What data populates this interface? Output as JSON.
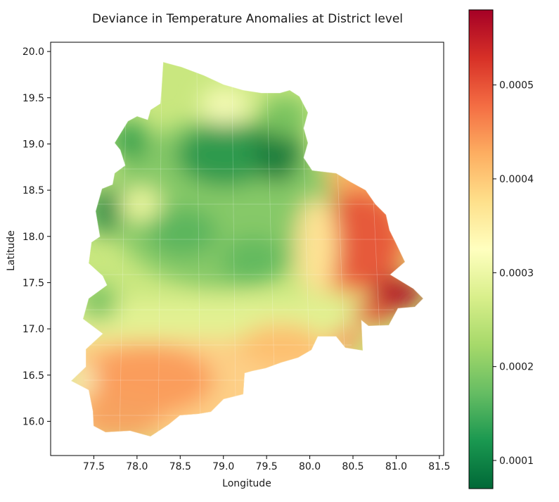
{
  "chart_data": {
    "type": "choropleth map",
    "title": "Deviance in Temperature Anomalies at District level",
    "xlabel": "Longitude",
    "ylabel": "Latitude",
    "x_ticks": [
      "77.5",
      "78.0",
      "78.5",
      "79.0",
      "79.5",
      "80.0",
      "80.5",
      "81.0",
      "81.5"
    ],
    "y_ticks": [
      "16.0",
      "16.5",
      "17.0",
      "17.5",
      "18.0",
      "18.5",
      "19.0",
      "19.5",
      "20.0"
    ],
    "xlim": [
      77.0,
      81.55
    ],
    "ylim": [
      15.63,
      20.1
    ],
    "colorbar": {
      "colormap": "RdYlGn_r",
      "range": [
        7e-05,
        0.00058
      ],
      "tick_labels": [
        "0.0001",
        "0.0002",
        "0.0003",
        "0.0004",
        "0.0005"
      ],
      "tick_values": [
        0.0001,
        0.0002,
        0.0003,
        0.0004,
        0.0005
      ]
    },
    "grid": false,
    "legend": "colorbar right",
    "colors": {
      "low": "#006837",
      "mid": "#ffffbf",
      "high": "#a50026"
    }
  }
}
